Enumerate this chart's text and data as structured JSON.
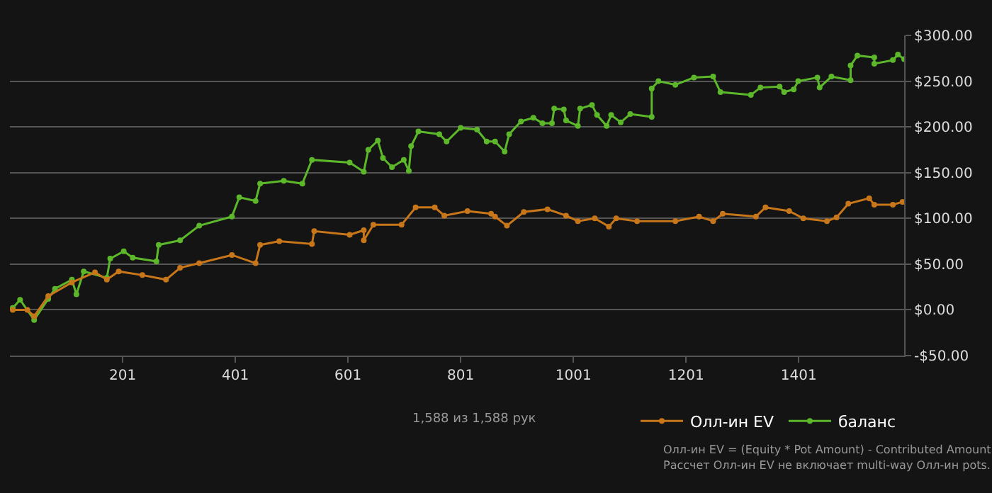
{
  "chart_data": {
    "type": "line",
    "marker": "circle",
    "grid": "y",
    "legend": "bottom right",
    "xlim": [
      1,
      1588
    ],
    "xticks": [
      201,
      401,
      601,
      801,
      1001,
      1201,
      1401
    ],
    "ylim": [
      -50,
      300
    ],
    "yticks": [
      {
        "value": -50,
        "label": "-$50.00"
      },
      {
        "value": 0,
        "label": "$0.00"
      },
      {
        "value": 50,
        "label": "$50.00"
      },
      {
        "value": 100,
        "label": "$100.00"
      },
      {
        "value": 150,
        "label": "$150.00"
      },
      {
        "value": 200,
        "label": "$200.00"
      },
      {
        "value": 250,
        "label": "$250.00"
      },
      {
        "value": 300,
        "label": "$300.00"
      }
    ],
    "annotations": [
      "1,588 из 1,588 рук",
      "Олл-ин EV = (Equity * Pot Amount) - Contributed Amount",
      "Рассчет Олл-ин EV не включает multi-way Олл-ин pots."
    ],
    "series": [
      {
        "name": "Олл-ин EV",
        "color": "#c8761a",
        "x": [
          6,
          32,
          44,
          69,
          111,
          152,
          173,
          194,
          236,
          278,
          303,
          337,
          395,
          437,
          445,
          479,
          537,
          541,
          604,
          629,
          629,
          646,
          696,
          721,
          755,
          772,
          813,
          855,
          862,
          883,
          913,
          955,
          988,
          1009,
          1039,
          1064,
          1077,
          1114,
          1182,
          1224,
          1249,
          1266,
          1325,
          1342,
          1384,
          1409,
          1451,
          1468,
          1489,
          1526,
          1535,
          1568,
          1585
        ],
        "values": [
          0,
          0,
          -7,
          15,
          30,
          41,
          33,
          42,
          38,
          33,
          46,
          51,
          60,
          51,
          71,
          75,
          72,
          86,
          82,
          87,
          76,
          93,
          93,
          112,
          112,
          103,
          108,
          105,
          102,
          92,
          107,
          110,
          103,
          97,
          100,
          91,
          100,
          97,
          97,
          102,
          97,
          105,
          102,
          112,
          108,
          100,
          97,
          101,
          116,
          122,
          115,
          115,
          118
        ]
      },
      {
        "name": "баланс",
        "color": "#5cb82a",
        "x": [
          6,
          19,
          44,
          69,
          81,
          111,
          119,
          132,
          173,
          179,
          203,
          219,
          261,
          265,
          303,
          337,
          395,
          408,
          437,
          445,
          487,
          520,
          537,
          604,
          629,
          637,
          654,
          663,
          679,
          700,
          709,
          713,
          726,
          763,
          776,
          801,
          830,
          847,
          862,
          879,
          887,
          908,
          930,
          946,
          963,
          967,
          984,
          988,
          1009,
          1013,
          1034,
          1043,
          1060,
          1068,
          1085,
          1102,
          1140,
          1140,
          1152,
          1182,
          1215,
          1249,
          1262,
          1316,
          1333,
          1367,
          1375,
          1392,
          1400,
          1434,
          1438,
          1459,
          1493,
          1493,
          1505,
          1535,
          1535,
          1568,
          1577,
          1588
        ],
        "values": [
          2,
          11,
          -11,
          12,
          23,
          33,
          17,
          42,
          35,
          56,
          64,
          57,
          53,
          71,
          76,
          92,
          102,
          123,
          119,
          138,
          141,
          138,
          164,
          161,
          151,
          175,
          185,
          166,
          156,
          164,
          152,
          179,
          195,
          192,
          184,
          199,
          197,
          184,
          184,
          173,
          192,
          206,
          210,
          204,
          204,
          220,
          219,
          207,
          201,
          220,
          224,
          213,
          201,
          213,
          205,
          214,
          211,
          242,
          250,
          246,
          254,
          255,
          238,
          235,
          243,
          244,
          238,
          241,
          250,
          254,
          243,
          255,
          251,
          267,
          278,
          276,
          269,
          273,
          279,
          274
        ]
      }
    ]
  }
}
